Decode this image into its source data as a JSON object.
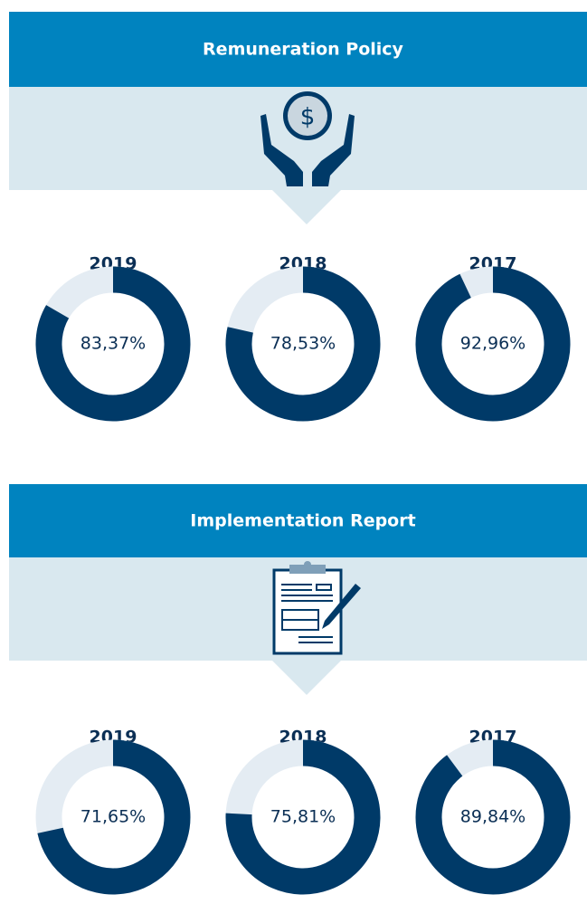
{
  "chart_data": [
    {
      "type": "donut",
      "title": "Remuneration Policy",
      "categories": [
        "2019",
        "2018",
        "2017"
      ],
      "values": [
        83.37,
        78.53,
        92.96
      ],
      "value_labels": [
        "83,37%",
        "78,53%",
        "92,96%"
      ],
      "color": "#003a68",
      "remainder_color": "#e4ecf3"
    },
    {
      "type": "donut",
      "title": "Implementation Report",
      "categories": [
        "2019",
        "2018",
        "2017"
      ],
      "values": [
        71.65,
        75.81,
        89.84
      ],
      "value_labels": [
        "71,65%",
        "75,81%",
        "89,84%"
      ],
      "color": "#003a68",
      "remainder_color": "#e4ecf3"
    }
  ]
}
